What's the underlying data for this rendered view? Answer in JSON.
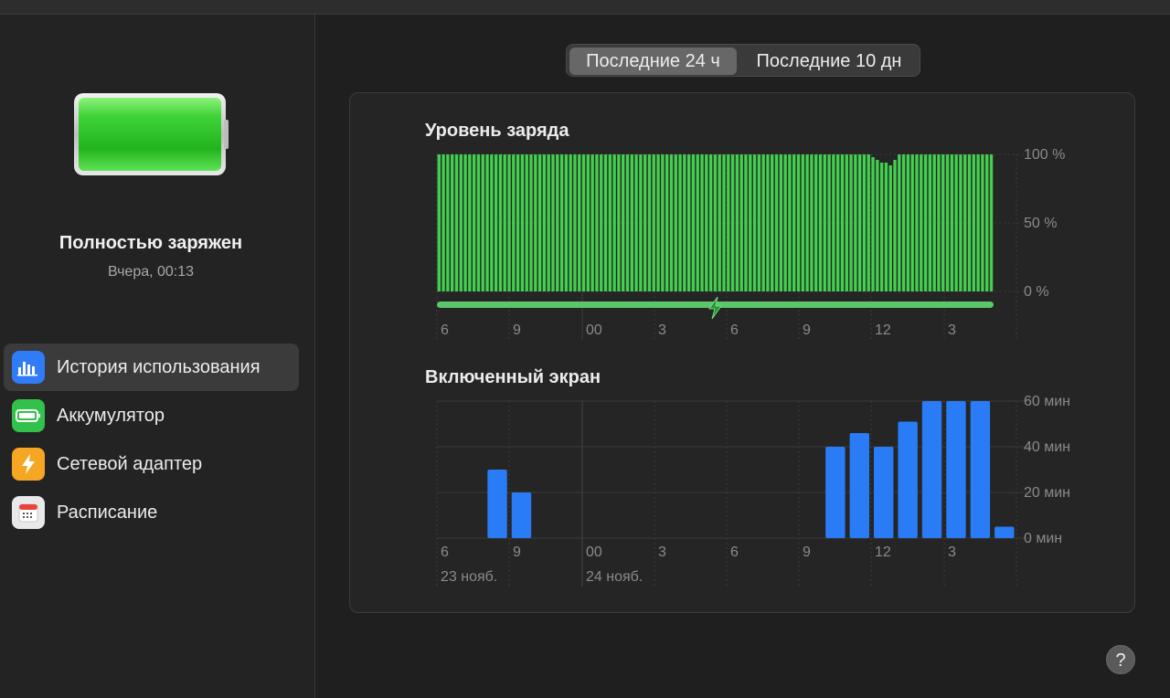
{
  "status": {
    "title": "Полностью заряжен",
    "time": "Вчера, 00:13",
    "battery_level_percent": 100
  },
  "sidebar": {
    "items": [
      {
        "label": "История использования",
        "icon": "bar-chart-icon",
        "color": "#2f7cf6",
        "active": true
      },
      {
        "label": "Аккумулятор",
        "icon": "battery-icon",
        "color": "#32c14a",
        "active": false
      },
      {
        "label": "Сетевой адаптер",
        "icon": "lightning-icon",
        "color": "#f5a623",
        "active": false
      },
      {
        "label": "Расписание",
        "icon": "calendar-icon",
        "color": "#e9e9e9",
        "active": false
      }
    ]
  },
  "tabs": [
    {
      "label": "Последние 24 ч",
      "active": true
    },
    {
      "label": "Последние 10 дн",
      "active": false
    }
  ],
  "help_label": "?",
  "colors": {
    "accent_blue": "#2a7cf6",
    "charge_green": "#43cf4f",
    "charging_bar": "#5cc66a"
  },
  "chart_data": [
    {
      "type": "bar",
      "title": "Уровень заряда",
      "y_ticks": [
        "100 %",
        "50 %",
        "0 %"
      ],
      "ylim": [
        0,
        100
      ],
      "x_tick_labels": [
        "6",
        "9",
        "00",
        "3",
        "6",
        "9",
        "12",
        "3"
      ],
      "values": [
        100,
        100,
        100,
        100,
        100,
        100,
        100,
        100,
        100,
        100,
        100,
        100,
        100,
        100,
        100,
        100,
        100,
        100,
        100,
        100,
        100,
        100,
        100,
        100,
        100,
        100,
        100,
        100,
        100,
        100,
        100,
        100,
        100,
        100,
        100,
        100,
        100,
        100,
        100,
        100,
        100,
        100,
        100,
        100,
        100,
        100,
        100,
        100,
        100,
        100,
        100,
        100,
        100,
        100,
        100,
        100,
        100,
        100,
        100,
        100,
        100,
        100,
        100,
        100,
        100,
        100,
        100,
        100,
        100,
        100,
        100,
        100,
        100,
        100,
        100,
        100,
        100,
        100,
        100,
        100,
        100,
        100,
        100,
        100,
        100,
        100,
        100,
        100,
        100,
        100,
        100,
        100,
        100,
        100,
        100,
        100,
        100,
        100,
        100,
        98,
        96,
        94,
        94,
        92,
        96,
        100,
        100,
        100,
        100,
        100,
        100,
        100,
        100,
        100,
        100,
        100,
        100,
        100,
        100,
        100,
        100,
        100,
        100,
        100,
        100,
        100,
        100
      ],
      "charging": true,
      "charging_icon": "lightning-icon"
    },
    {
      "type": "bar",
      "title": "Включенный экран",
      "y_ticks": [
        "60 мин",
        "40 мин",
        "20 мин",
        "0 мин"
      ],
      "ylim": [
        0,
        60
      ],
      "x_tick_labels": [
        "6",
        "9",
        "00",
        "3",
        "6",
        "9",
        "12",
        "3"
      ],
      "date_labels": [
        "23 нояб.",
        "24 нояб."
      ],
      "values": [
        0,
        0,
        30,
        20,
        0,
        0,
        0,
        0,
        0,
        0,
        0,
        0,
        0,
        0,
        0,
        0,
        40,
        46,
        40,
        51,
        60,
        60,
        60,
        5
      ]
    }
  ]
}
